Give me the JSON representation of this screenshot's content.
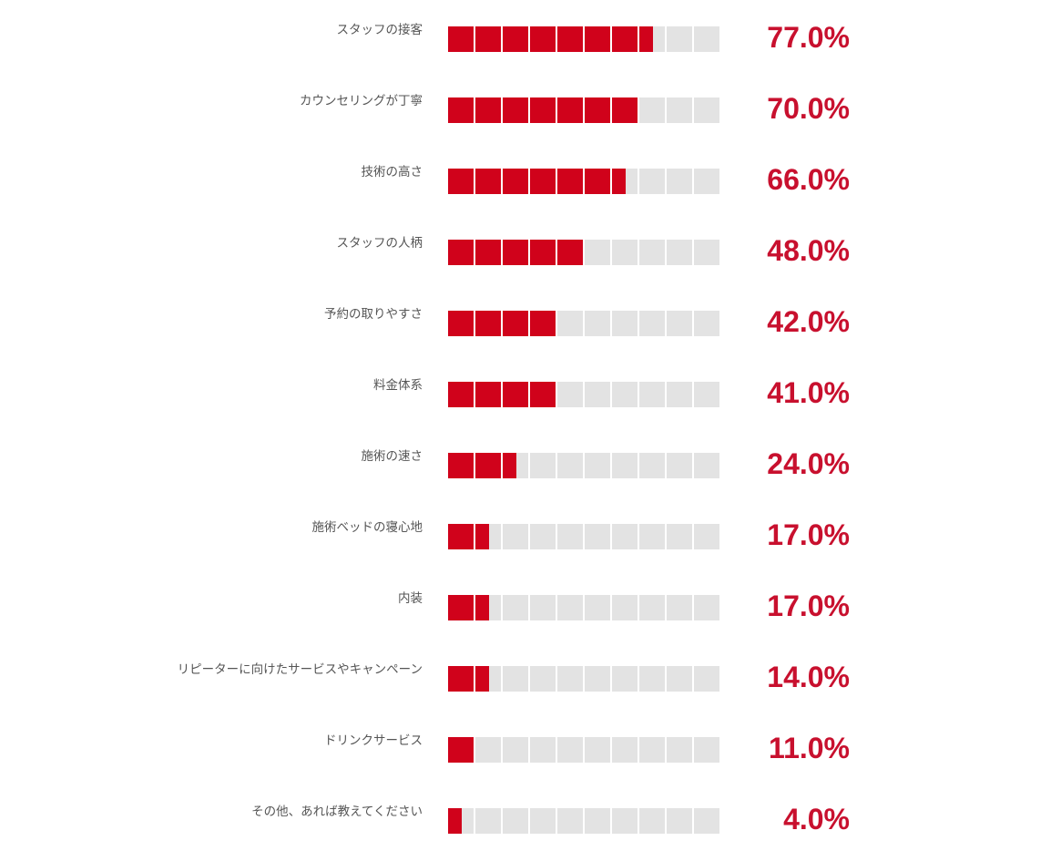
{
  "chart_data": {
    "type": "bar",
    "orientation": "horizontal",
    "style": "segmented (10 cells)",
    "categories": [
      "スタッフの接客",
      "カウンセリングが丁寧",
      "技術の高さ",
      "スタッフの人柄",
      "予約の取りやすさ",
      "料金体系",
      "施術の速さ",
      "施術ベッドの寝心地",
      "内装",
      "リピーターに向けたサービスやキャンペーン",
      "ドリンクサービス",
      "その他、あれば教えてください"
    ],
    "values": [
      77.0,
      70.0,
      66.0,
      48.0,
      42.0,
      41.0,
      24.0,
      17.0,
      17.0,
      14.0,
      11.0,
      4.0
    ],
    "value_labels": [
      "77.0%",
      "70.0%",
      "66.0%",
      "48.0%",
      "42.0%",
      "41.0%",
      "24.0%",
      "17.0%",
      "17.0%",
      "14.0%",
      "11.0%",
      "4.0%"
    ],
    "xlim": [
      0,
      100
    ],
    "colors": {
      "fill": "#d0021b",
      "empty": "#e3e3e3",
      "value_text": "#c8102e"
    }
  }
}
